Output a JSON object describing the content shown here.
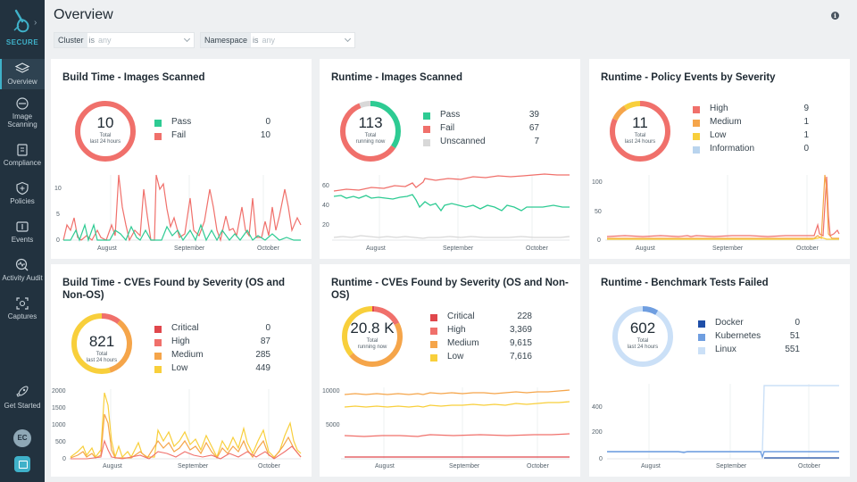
{
  "sidebar": {
    "brand": "SECURE",
    "items": [
      {
        "label": "Overview",
        "icon": "layers-icon"
      },
      {
        "label": "Image Scanning",
        "icon": "scan-icon"
      },
      {
        "label": "Compliance",
        "icon": "clipboard-icon"
      },
      {
        "label": "Policies",
        "icon": "shield-icon"
      },
      {
        "label": "Events",
        "icon": "events-icon"
      },
      {
        "label": "Activity Audit",
        "icon": "activity-icon"
      },
      {
        "label": "Captures",
        "icon": "capture-icon"
      }
    ],
    "get_started": "Get Started",
    "avatar_initials": "EC"
  },
  "header": {
    "title": "Overview",
    "filters": [
      {
        "key": "Cluster",
        "op": "is",
        "value": "any"
      },
      {
        "key": "Namespace",
        "op": "is",
        "value": "any"
      }
    ]
  },
  "colors": {
    "pass": "#2ecb93",
    "fail": "#f0706b",
    "unscanned": "#d8d8d8",
    "critical": "#e0474c",
    "high": "#f0706b",
    "medium": "#f5a54a",
    "low": "#f8cf3b",
    "information": "#b9d4ee",
    "docker": "#1f4fa8",
    "kubernetes": "#6f9ee0",
    "linux": "#cbe0f7",
    "accent": "#3fb1c9",
    "sidebar": "#22323f"
  },
  "cards": [
    {
      "title": "Build Time - Images Scanned",
      "donut": {
        "value": "10",
        "sub1": "Total",
        "sub2": "last 24 hours"
      },
      "legend": [
        {
          "name": "Pass",
          "value": "0",
          "color": "#2ecb93"
        },
        {
          "name": "Fail",
          "value": "10",
          "color": "#f0706b"
        }
      ],
      "chart": {
        "yticks": [
          "10",
          "5",
          "0"
        ],
        "months": [
          "August",
          "September",
          "October"
        ]
      }
    },
    {
      "title": "Runtime - Images Scanned",
      "donut": {
        "value": "113",
        "sub1": "Total",
        "sub2": "running now"
      },
      "legend": [
        {
          "name": "Pass",
          "value": "39",
          "color": "#2ecb93"
        },
        {
          "name": "Fail",
          "value": "67",
          "color": "#f0706b"
        },
        {
          "name": "Unscanned",
          "value": "7",
          "color": "#d8d8d8"
        }
      ],
      "chart": {
        "yticks": [
          "60",
          "40",
          "20"
        ],
        "months": [
          "August",
          "September",
          "October"
        ]
      }
    },
    {
      "title": "Runtime - Policy Events by Severity",
      "donut": {
        "value": "11",
        "sub1": "Total",
        "sub2": "last 24 hours"
      },
      "legend": [
        {
          "name": "High",
          "value": "9",
          "color": "#f0706b"
        },
        {
          "name": "Medium",
          "value": "1",
          "color": "#f5a54a"
        },
        {
          "name": "Low",
          "value": "1",
          "color": "#f8cf3b"
        },
        {
          "name": "Information",
          "value": "0",
          "color": "#b9d4ee"
        }
      ],
      "chart": {
        "yticks": [
          "100",
          "50",
          "0"
        ],
        "months": [
          "August",
          "September",
          "October"
        ]
      }
    },
    {
      "title": "Build Time - CVEs Found by Severity (OS and Non-OS)",
      "donut": {
        "value": "821",
        "sub1": "Total",
        "sub2": "last 24 hours"
      },
      "legend": [
        {
          "name": "Critical",
          "value": "0",
          "color": "#e0474c"
        },
        {
          "name": "High",
          "value": "87",
          "color": "#f0706b"
        },
        {
          "name": "Medium",
          "value": "285",
          "color": "#f5a54a"
        },
        {
          "name": "Low",
          "value": "449",
          "color": "#f8cf3b"
        }
      ],
      "chart": {
        "yticks": [
          "2000",
          "1500",
          "1000",
          "500",
          "0"
        ],
        "months": [
          "August",
          "September",
          "October"
        ]
      }
    },
    {
      "title": "Runtime - CVEs Found by Severity (OS and Non-OS)",
      "donut": {
        "value": "20.8 K",
        "sub1": "Total",
        "sub2": "running now"
      },
      "legend": [
        {
          "name": "Critical",
          "value": "228",
          "color": "#e0474c"
        },
        {
          "name": "High",
          "value": "3,369",
          "color": "#f0706b"
        },
        {
          "name": "Medium",
          "value": "9,615",
          "color": "#f5a54a"
        },
        {
          "name": "Low",
          "value": "7,616",
          "color": "#f8cf3b"
        }
      ],
      "chart": {
        "yticks": [
          "10000",
          "5000"
        ],
        "months": [
          "August",
          "September",
          "October"
        ]
      }
    },
    {
      "title": "Runtime - Benchmark Tests Failed",
      "donut": {
        "value": "602",
        "sub1": "Total",
        "sub2": "last 24 hours"
      },
      "legend": [
        {
          "name": "Docker",
          "value": "0",
          "color": "#1f4fa8"
        },
        {
          "name": "Kubernetes",
          "value": "51",
          "color": "#6f9ee0"
        },
        {
          "name": "Linux",
          "value": "551",
          "color": "#cbe0f7"
        }
      ],
      "chart": {
        "yticks": [
          "400",
          "200",
          "0"
        ],
        "months": [
          "August",
          "September",
          "October"
        ]
      }
    }
  ]
}
